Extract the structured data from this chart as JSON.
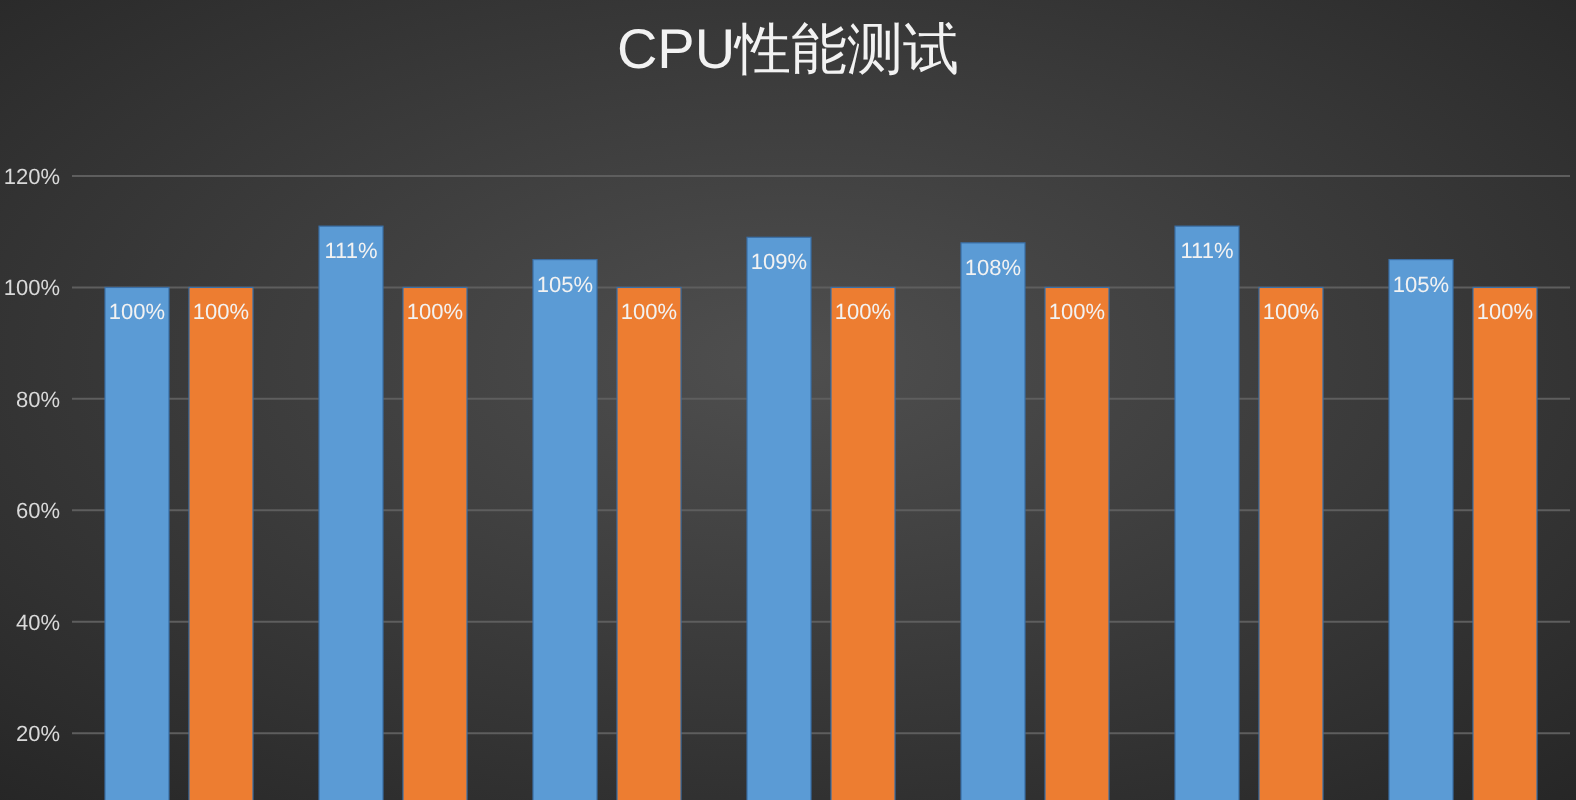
{
  "chart_data": {
    "type": "bar",
    "title": "CPU性能测试",
    "categories": [
      null,
      null,
      null,
      null,
      null,
      null,
      null
    ],
    "series": [
      {
        "color": "#5b9bd5",
        "values": [
          100,
          111,
          105,
          109,
          108,
          111,
          105
        ],
        "value_labels": [
          "100%",
          "111%",
          "105%",
          "109%",
          "108%",
          "111%",
          "105%"
        ]
      },
      {
        "color": "#ed7d31",
        "values": [
          100,
          100,
          100,
          100,
          100,
          100,
          100
        ],
        "value_labels": [
          "100%",
          "100%",
          "100%",
          "100%",
          "100%",
          "100%",
          "100%"
        ]
      }
    ],
    "ylim": [
      8,
      120
    ],
    "yticks": [
      {
        "value": 20,
        "label": "20%"
      },
      {
        "value": 40,
        "label": "40%"
      },
      {
        "value": 60,
        "label": "60%"
      },
      {
        "value": 80,
        "label": "80%"
      },
      {
        "value": 100,
        "label": "100%"
      },
      {
        "value": 120,
        "label": "120%"
      }
    ],
    "grid": "y"
  }
}
